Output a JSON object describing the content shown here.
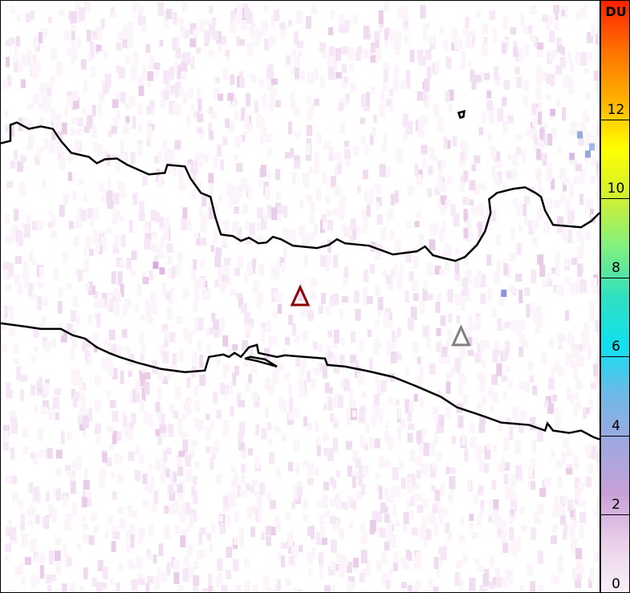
{
  "colorbar": {
    "unit": "DU",
    "min": 0,
    "max": 15,
    "ticks": [
      "0",
      "2",
      "4",
      "6",
      "8",
      "10",
      "12"
    ],
    "colors": [
      "#f8f0f8",
      "#ead0ea",
      "#c8a0d8",
      "#a0a8e0",
      "#70b8e8",
      "#10e0f0",
      "#30e0c0",
      "#80f080",
      "#d0f030",
      "#ffff00",
      "#ffb000",
      "#ff7000",
      "#ff2000"
    ]
  },
  "markers": [
    {
      "name": "volcano-red",
      "color": "#8b0000"
    },
    {
      "name": "volcano-gray",
      "color": "#808080"
    }
  ]
}
